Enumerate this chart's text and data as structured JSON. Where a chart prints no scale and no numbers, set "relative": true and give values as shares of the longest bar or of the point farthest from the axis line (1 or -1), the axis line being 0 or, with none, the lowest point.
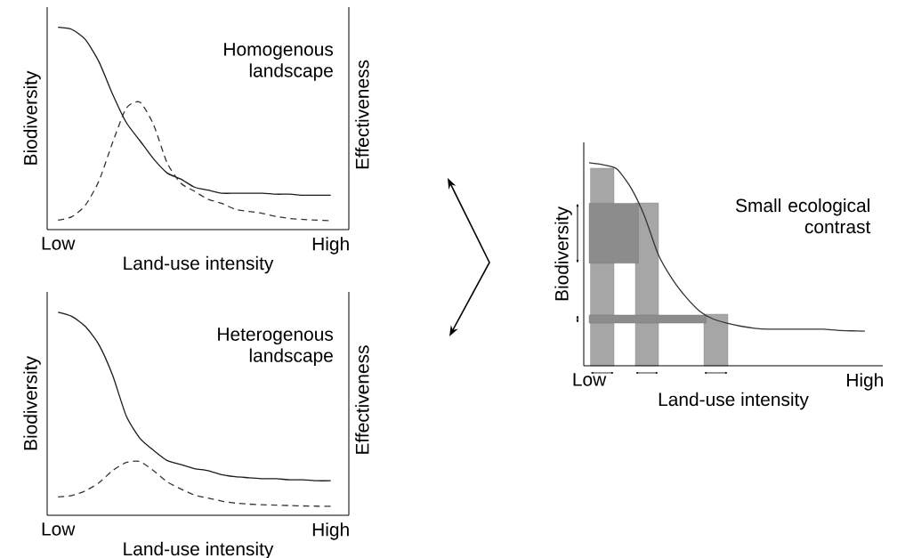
{
  "chart_data": [
    {
      "type": "line",
      "xlabel": "Land-use intensity",
      "ylabel": "Biodiversity",
      "y2label": "Effectiveness",
      "relative": true,
      "categories": [
        "Low",
        null,
        null,
        null,
        null,
        null,
        null,
        null,
        null,
        null,
        null,
        null,
        null,
        null,
        null,
        null,
        null,
        null,
        null,
        null,
        "High"
      ],
      "annotations": [
        "Homogenous landscape"
      ],
      "series": [
        {
          "color": "#1a1a1a",
          "line_style": "solid",
          "values": [
            1.0,
            0.99,
            0.94,
            0.83,
            0.67,
            0.53,
            0.44,
            0.35,
            0.28,
            0.25,
            0.21,
            0.195,
            0.18,
            0.18,
            0.18,
            0.18,
            0.175,
            0.175,
            0.17,
            0.17,
            0.17
          ]
        },
        {
          "color": "#333333",
          "line_style": "dashed",
          "values": [
            0.047,
            0.063,
            0.12,
            0.24,
            0.43,
            0.6,
            0.63,
            0.52,
            0.33,
            0.23,
            0.19,
            0.15,
            0.13,
            0.1,
            0.09,
            0.08,
            0.065,
            0.055,
            0.05,
            0.047,
            0.044
          ]
        }
      ]
    },
    {
      "type": "line",
      "xlabel": "Land-use intensity",
      "ylabel": "Biodiversity",
      "y2label": "Effectiveness",
      "relative": true,
      "categories": [
        "Low",
        null,
        null,
        null,
        null,
        null,
        null,
        null,
        null,
        null,
        null,
        null,
        null,
        null,
        null,
        null,
        null,
        null,
        null,
        null,
        "High"
      ],
      "annotations": [
        "Heterogenous landscape"
      ],
      "series": [
        {
          "color": "#1a1a1a",
          "line_style": "solid",
          "values": [
            1.0,
            0.98,
            0.93,
            0.84,
            0.69,
            0.49,
            0.38,
            0.32,
            0.27,
            0.25,
            0.23,
            0.22,
            0.2,
            0.19,
            0.185,
            0.18,
            0.18,
            0.175,
            0.175,
            0.17,
            0.17
          ]
        },
        {
          "color": "#333333",
          "line_style": "dashed",
          "values": [
            0.09,
            0.097,
            0.12,
            0.16,
            0.22,
            0.26,
            0.265,
            0.22,
            0.165,
            0.13,
            0.1,
            0.085,
            0.07,
            0.06,
            0.055,
            0.052,
            0.05,
            0.048,
            0.046,
            0.045,
            0.044
          ]
        }
      ]
    },
    {
      "type": "line",
      "xlabel": "Land-use intensity",
      "ylabel": "Biodiversity",
      "relative": true,
      "categories": [
        "Low",
        null,
        null,
        null,
        null,
        null,
        null,
        null,
        null,
        null,
        null,
        null,
        null,
        null,
        null,
        null,
        null,
        null,
        null,
        null,
        "High"
      ],
      "annotations": [
        "Small ecological contrast"
      ],
      "bands": [
        {
          "axis": "y",
          "from": 0.505,
          "to": 0.8,
          "color": "#8c8c8c"
        },
        {
          "axis": "y",
          "from": 0.21,
          "to": 0.25,
          "color": "#8c8c8c"
        }
      ],
      "series": [
        {
          "color": "#333333",
          "line_style": "solid",
          "values": [
            1.0,
            0.99,
            0.97,
            0.88,
            0.74,
            0.55,
            0.43,
            0.34,
            0.27,
            0.23,
            0.21,
            0.195,
            0.185,
            0.18,
            0.18,
            0.18,
            0.18,
            0.18,
            0.175,
            0.172,
            0.17
          ]
        }
      ]
    }
  ]
}
